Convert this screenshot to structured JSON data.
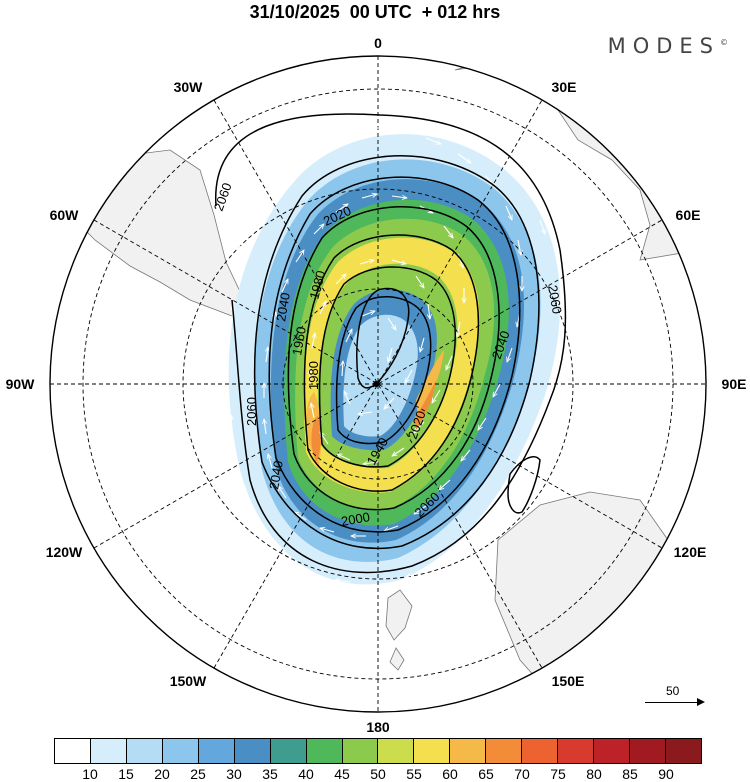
{
  "title": "31/10/2025  00 UTC  + 012 hrs",
  "brand": "MODES",
  "brand_mark": "©",
  "longitude_labels": [
    "0",
    "30E",
    "60E",
    "90E",
    "120E",
    "150E",
    "180",
    "150W",
    "120W",
    "90W",
    "60W",
    "30W"
  ],
  "contour_labels": [
    "2060",
    "2020",
    "1980",
    "1960",
    "1980",
    "1940",
    "2040",
    "2060",
    "2040",
    "2060",
    "2000",
    "2040",
    "2020",
    "2060"
  ],
  "vector_reference": {
    "value": "50"
  },
  "colorbar": {
    "ticks": [
      "10",
      "15",
      "20",
      "25",
      "30",
      "35",
      "40",
      "45",
      "50",
      "55",
      "60",
      "65",
      "70",
      "75",
      "80",
      "85",
      "90"
    ],
    "colors": [
      "#ffffff",
      "#d6eefb",
      "#b4ddf5",
      "#8cc6ec",
      "#63a7dc",
      "#4a8ec4",
      "#3e9d8e",
      "#4fb85b",
      "#8cca4d",
      "#cddc4c",
      "#f4df4e",
      "#f5b94a",
      "#f28c38",
      "#ec6230",
      "#d83a2e",
      "#bd2229",
      "#a11a22",
      "#8b1a1f"
    ]
  },
  "chart_data": {
    "type": "heatmap",
    "title": "31/10/2025  00 UTC  + 012 hrs",
    "projection": "south polar stereographic",
    "variable": "wind speed (shaded) with geopotential height contours and wind vectors",
    "contour_levels": [
      1940,
      1960,
      1980,
      2000,
      2020,
      2040,
      2060
    ],
    "colorbar_bounds": [
      10,
      15,
      20,
      25,
      30,
      35,
      40,
      45,
      50,
      55,
      60,
      65,
      70,
      75,
      80,
      85,
      90
    ],
    "vector_reference": 50
  }
}
